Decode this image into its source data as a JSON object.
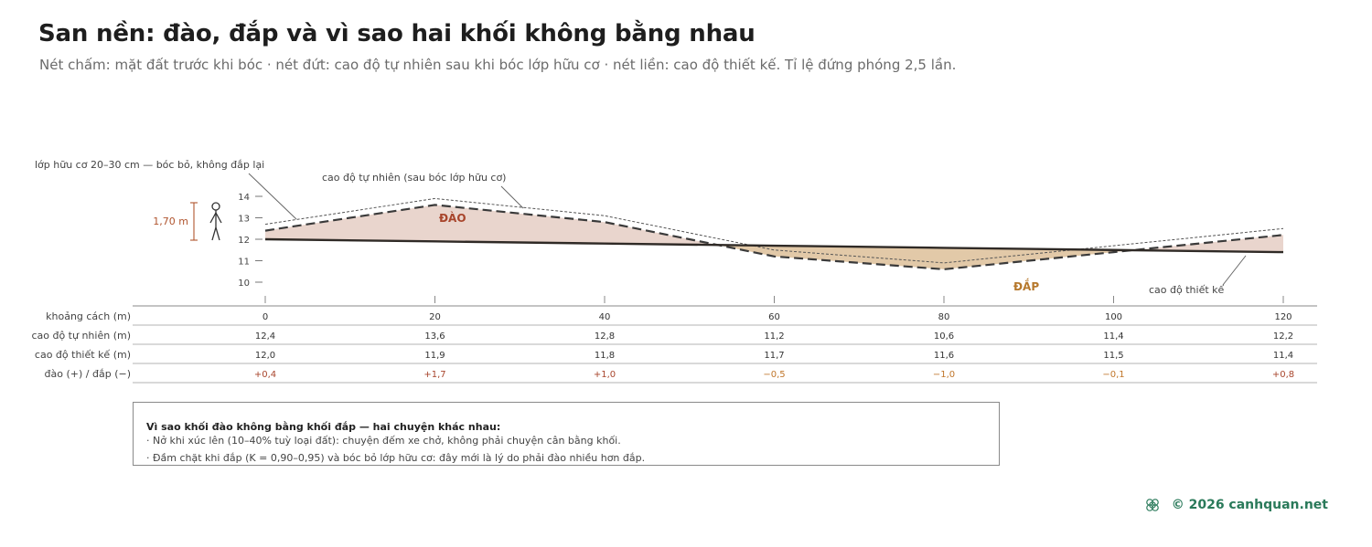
{
  "header": {
    "title": "San nền: đào, đắp và vì sao hai khối không bằng nhau",
    "subtitle": "Nét chấm: mặt đất trước khi bóc · nét đứt: cao độ tự nhiên sau khi bóc lớp hữu cơ · nét liền: cao độ thiết kế. Tỉ lệ đứng phóng 2,5 lần."
  },
  "annotations": {
    "organic_layer": "lớp hữu cơ 20–30 cm — bóc bỏ, không đắp lại",
    "natural_grade": "cao độ tự nhiên (sau bóc lớp hữu cơ)",
    "design_grade": "cao độ thiết kế",
    "cut": "ĐÀO",
    "fill": "ĐẮP",
    "person_height": "1,70 m"
  },
  "chart_data": {
    "type": "area",
    "y_ticks": [
      "14",
      "13",
      "12",
      "11",
      "10"
    ],
    "ylim": [
      10,
      14
    ],
    "x": [
      0,
      20,
      40,
      60,
      80,
      100,
      120
    ],
    "series": [
      {
        "name": "cao độ tự nhiên (m)",
        "values": [
          12.4,
          13.6,
          12.8,
          11.2,
          10.6,
          11.4,
          12.2
        ]
      },
      {
        "name": "cao độ thiết kế (m)",
        "values": [
          12.0,
          11.9,
          11.8,
          11.7,
          11.6,
          11.5,
          11.4
        ]
      }
    ],
    "colors": {
      "cut_fill": "#e9d5cd",
      "fill_fill": "#e2c9a8",
      "cut_label": "#a8452c",
      "fill_label": "#b6782c",
      "cut_value": "#a8452c",
      "fill_value": "#c0762a"
    }
  },
  "table": {
    "rows": [
      {
        "label": "khoảng cách (m)",
        "values": [
          "0",
          "20",
          "40",
          "60",
          "80",
          "100",
          "120"
        ]
      },
      {
        "label": "cao độ tự nhiên (m)",
        "values": [
          "12,4",
          "13,6",
          "12,8",
          "11,2",
          "10,6",
          "11,4",
          "12,2"
        ]
      },
      {
        "label": "cao độ thiết kế (m)",
        "values": [
          "12,0",
          "11,9",
          "11,8",
          "11,7",
          "11,6",
          "11,5",
          "11,4"
        ]
      },
      {
        "label": "đào (+) / đắp (−)",
        "values": [
          "+0,4",
          "+1,7",
          "+1,0",
          "−0,5",
          "−1,0",
          "−0,1",
          "+0,8"
        ]
      }
    ]
  },
  "note": {
    "title": "Vì sao khối đào không bằng khối đắp — hai chuyện khác nhau:",
    "line1": "· Nở khi xúc lên (10–40% tuỳ loại đất): chuyện đếm xe chở, không phải chuyện cân bằng khối.",
    "line2": "· Đầm chặt khi đắp (K = 0,90–0,95) và bóc bỏ lớp hữu cơ: đây mới là lý do phải đào nhiều hơn đắp."
  },
  "footer": {
    "copyright": "© 2026 canhquan.net",
    "logo_icon": "lattice-logo-icon"
  }
}
